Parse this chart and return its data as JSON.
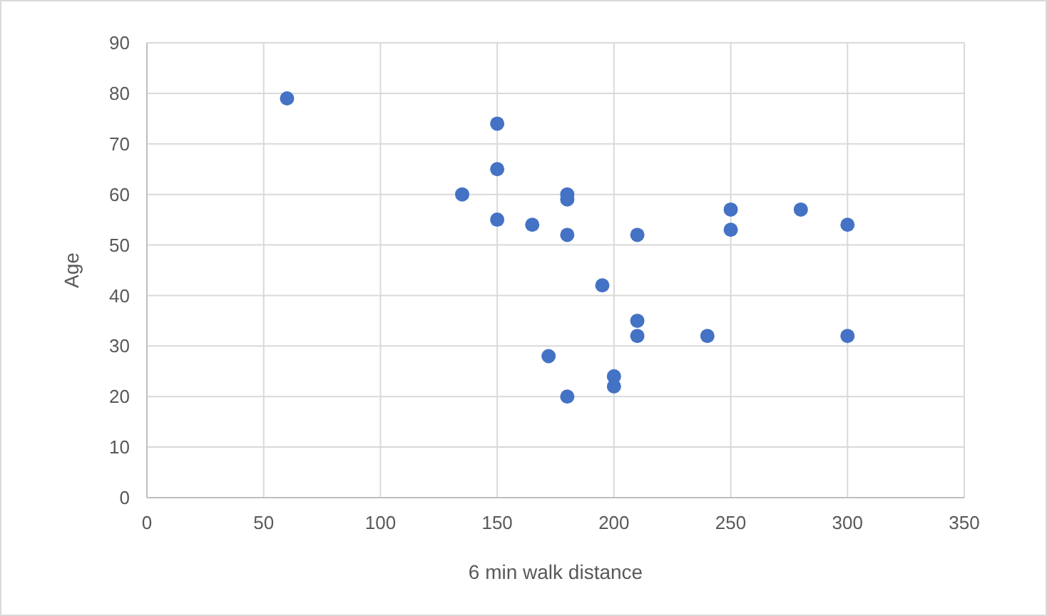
{
  "chart_data": {
    "type": "scatter",
    "xlabel": "6 min walk distance",
    "ylabel": "Age",
    "x": [
      60,
      150,
      150,
      135,
      150,
      165,
      180,
      180,
      180,
      172,
      180,
      195,
      200,
      200,
      210,
      210,
      210,
      240,
      250,
      250,
      280,
      300,
      300
    ],
    "series": [
      {
        "color": "#4472c4",
        "values": [
          79,
          74,
          65,
          60,
          55,
          54,
          60,
          59,
          52,
          28,
          20,
          42,
          24,
          22,
          52,
          35,
          32,
          32,
          57,
          53,
          57,
          54,
          32
        ]
      }
    ],
    "xlim": [
      0,
      350
    ],
    "xticks": [
      0,
      50,
      100,
      150,
      200,
      250,
      300,
      350
    ],
    "ylim": [
      0,
      90
    ],
    "yticks": [
      0,
      10,
      20,
      30,
      40,
      50,
      60,
      70,
      80,
      90
    ],
    "grid": true,
    "marker": "circle"
  }
}
